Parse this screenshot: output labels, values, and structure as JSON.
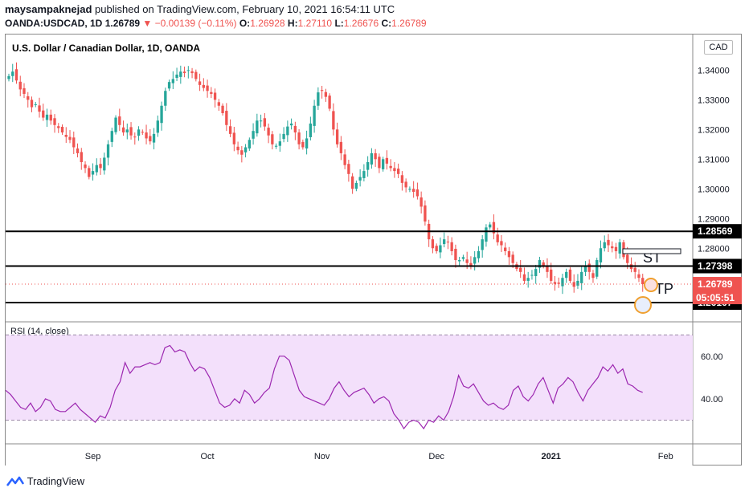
{
  "header": {
    "author": "maysampaknejad",
    "published_text": "published on TradingView.com, February 10, 2021 16:54:11 UTC",
    "symbol_line": "OANDA:USDCAD, 1D",
    "last": "1.26789",
    "change": "▼ −0.00139 (−0.11%)",
    "o_label": "O:",
    "o_value": "1.26928",
    "h_label": "H:",
    "h_value": "1.27110",
    "l_label": "L:",
    "l_value": "1.26676",
    "c_label": "C:",
    "c_value": "1.26789"
  },
  "chart_title": "U.S. Dollar / Canadian Dollar, 1D, OANDA",
  "unit_label": "CAD",
  "rsi_label": "RSI (14, close)",
  "logo_text": "TradingView",
  "colors": {
    "up": "#26a69a",
    "down": "#ef5350",
    "rsi_line": "#9c27b0",
    "rsi_band": "#f3e0fb",
    "level": "#000000"
  },
  "chart_data": [
    {
      "type": "candlestick",
      "title": "U.S. Dollar / Canadian Dollar, 1D, OANDA",
      "y_ticks": [
        "1.34000",
        "1.33000",
        "1.32000",
        "1.31000",
        "1.30000",
        "1.29000",
        "1.28000"
      ],
      "y_tick_values": [
        1.34,
        1.33,
        1.32,
        1.31,
        1.3,
        1.29,
        1.28
      ],
      "ylim": [
        1.256,
        1.352
      ],
      "x_ticks": [
        "Sep",
        "Oct",
        "Nov",
        "Dec",
        "2021",
        "Feb"
      ],
      "x_tick_index": [
        22,
        52,
        82,
        112,
        142,
        172
      ],
      "horizontal_levels": [
        {
          "value": 1.28569,
          "label": "1.28569"
        },
        {
          "value": 1.27398,
          "label": "1.27398"
        },
        {
          "value": 1.26167,
          "label": "1.26167"
        }
      ],
      "current_price": {
        "value": 1.26789,
        "label": "1.26789",
        "countdown": "05:05:51"
      },
      "annotations": [
        "ST",
        "TP"
      ],
      "closes": [
        1.338,
        1.3395,
        1.3365,
        1.3335,
        1.332,
        1.33,
        1.3275,
        1.3285,
        1.326,
        1.324,
        1.325,
        1.323,
        1.3215,
        1.3205,
        1.319,
        1.3175,
        1.3165,
        1.314,
        1.312,
        1.309,
        1.307,
        1.304,
        1.306,
        1.308,
        1.307,
        1.3105,
        1.315,
        1.3195,
        1.324,
        1.3215,
        1.319,
        1.32,
        1.318,
        1.3175,
        1.32,
        1.319,
        1.317,
        1.316,
        1.3185,
        1.323,
        1.328,
        1.333,
        1.336,
        1.337,
        1.3385,
        1.3395,
        1.339,
        1.34,
        1.339,
        1.337,
        1.335,
        1.334,
        1.333,
        1.332,
        1.33,
        1.328,
        1.3255,
        1.3215,
        1.3185,
        1.315,
        1.313,
        1.3115,
        1.314,
        1.3165,
        1.3195,
        1.323,
        1.323,
        1.321,
        1.318,
        1.315,
        1.3145,
        1.316,
        1.3185,
        1.321,
        1.322,
        1.319,
        1.315,
        1.314,
        1.317,
        1.322,
        1.328,
        1.3325,
        1.333,
        1.331,
        1.327,
        1.32,
        1.315,
        1.312,
        1.308,
        1.305,
        1.3,
        1.302,
        1.304,
        1.306,
        1.309,
        1.312,
        1.31,
        1.307,
        1.31,
        1.3085,
        1.307,
        1.306,
        1.305,
        1.302,
        1.3005,
        1.3,
        1.299,
        1.2975,
        1.294,
        1.289,
        1.283,
        1.28,
        1.279,
        1.281,
        1.283,
        1.282,
        1.279,
        1.276,
        1.276,
        1.277,
        1.275,
        1.274,
        1.277,
        1.279,
        1.283,
        1.287,
        1.288,
        1.285,
        1.282,
        1.281,
        1.279,
        1.277,
        1.275,
        1.273,
        1.272,
        1.269,
        1.27,
        1.271,
        1.273,
        1.276,
        1.274,
        1.272,
        1.269,
        1.268,
        1.268,
        1.27,
        1.272,
        1.269,
        1.267,
        1.269,
        1.272,
        1.274,
        1.272,
        1.27,
        1.276,
        1.28,
        1.282,
        1.281,
        1.28,
        1.279,
        1.282,
        1.277,
        1.275,
        1.273,
        1.272,
        1.27,
        1.2679
      ]
    },
    {
      "type": "line",
      "title": "RSI (14, close)",
      "y_ticks": [
        "60.00",
        "40.00"
      ],
      "y_tick_values": [
        60,
        40
      ],
      "ylim": [
        20,
        75
      ],
      "band": [
        30,
        70
      ],
      "values": [
        44,
        42,
        39,
        36,
        35,
        38,
        34,
        36,
        40,
        39,
        35,
        34,
        34,
        36,
        38,
        35,
        33,
        31,
        29,
        32,
        31,
        36,
        44,
        48,
        57,
        52,
        55,
        55,
        56,
        57,
        56,
        57,
        64,
        65,
        62,
        63,
        62,
        57,
        53,
        55,
        54,
        50,
        44,
        38,
        36,
        37,
        40,
        38,
        44,
        42,
        38,
        40,
        43,
        45,
        54,
        60,
        60,
        58,
        51,
        44,
        41,
        40,
        39,
        38,
        37,
        40,
        45,
        48,
        44,
        41,
        43,
        44,
        45,
        42,
        38,
        40,
        41,
        39,
        33,
        30,
        26,
        29,
        30,
        29,
        26,
        30,
        29,
        32,
        30,
        34,
        41,
        51,
        46,
        45,
        47,
        43,
        39,
        37,
        38,
        36,
        35,
        37,
        44,
        46,
        41,
        39,
        42,
        47,
        50,
        44,
        38,
        45,
        47,
        50,
        48,
        43,
        39,
        44,
        47,
        50,
        55,
        53,
        56,
        52,
        54,
        47,
        46,
        44,
        43
      ]
    }
  ]
}
